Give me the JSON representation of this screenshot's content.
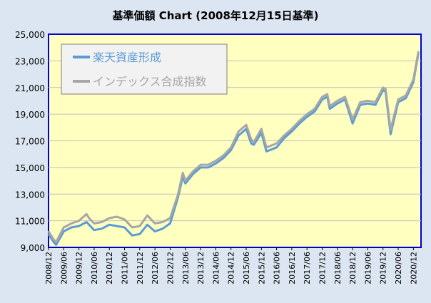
{
  "chart_data": {
    "type": "line",
    "title": "基準価額 Chart (2008年12月15日基準)",
    "xlabel": "",
    "ylabel": "",
    "ylim": [
      9000,
      25000
    ],
    "y_ticks": [
      "9,000",
      "11,000",
      "13,000",
      "15,000",
      "17,000",
      "19,000",
      "21,000",
      "23,000",
      "25,000"
    ],
    "x_ticks": [
      "2008/12",
      "2009/06",
      "2009/12",
      "2010/06",
      "2010/12",
      "2011/06",
      "2011/12",
      "2012/06",
      "2012/12",
      "2013/06",
      "2013/12",
      "2014/06",
      "2014/12",
      "2015/06",
      "2015/12",
      "2016/06",
      "2016/12",
      "2017/06",
      "2017/12",
      "2018/06",
      "2018/12",
      "2019/06",
      "2019/12",
      "2020/06",
      "2020/12"
    ],
    "grid": true,
    "legend_position": "top-left",
    "plot_background": "#ffffc0",
    "series": [
      {
        "name": "楽天資産形成",
        "color": "#5b9bd5",
        "x": [
          "2008/12",
          "2009/02",
          "2009/03",
          "2009/06",
          "2009/09",
          "2009/12",
          "2010/03",
          "2010/04",
          "2010/06",
          "2010/09",
          "2010/12",
          "2011/03",
          "2011/06",
          "2011/09",
          "2011/12",
          "2012/03",
          "2012/06",
          "2012/09",
          "2012/12",
          "2013/03",
          "2013/05",
          "2013/06",
          "2013/09",
          "2013/12",
          "2014/03",
          "2014/06",
          "2014/09",
          "2014/12",
          "2015/03",
          "2015/06",
          "2015/08",
          "2015/09",
          "2015/12",
          "2016/02",
          "2016/06",
          "2016/09",
          "2016/12",
          "2017/03",
          "2017/06",
          "2017/09",
          "2017/12",
          "2018/02",
          "2018/03",
          "2018/06",
          "2018/09",
          "2018/12",
          "2019/03",
          "2019/06",
          "2019/09",
          "2019/12",
          "2020/01",
          "2020/03",
          "2020/04",
          "2020/06",
          "2020/09",
          "2020/12",
          "2021/02"
        ],
        "values": [
          10000,
          9400,
          9200,
          10200,
          10500,
          10600,
          10900,
          10700,
          10300,
          10400,
          10700,
          10600,
          10500,
          9900,
          10000,
          10700,
          10200,
          10400,
          10800,
          12700,
          14300,
          13800,
          14500,
          15000,
          15000,
          15300,
          15700,
          16300,
          17400,
          17900,
          16800,
          16700,
          17600,
          16200,
          16500,
          17200,
          17700,
          18300,
          18800,
          19200,
          20100,
          20300,
          19400,
          19800,
          20100,
          18300,
          19700,
          19800,
          19700,
          20800,
          20700,
          17500,
          18300,
          19900,
          20200,
          21400,
          23600
        ]
      },
      {
        "name": "インデックス合成指数",
        "color": "#a6a6a6",
        "x": [
          "2008/12",
          "2009/02",
          "2009/03",
          "2009/06",
          "2009/09",
          "2009/12",
          "2010/03",
          "2010/04",
          "2010/06",
          "2010/09",
          "2010/12",
          "2011/03",
          "2011/06",
          "2011/09",
          "2011/12",
          "2012/03",
          "2012/06",
          "2012/09",
          "2012/12",
          "2013/03",
          "2013/05",
          "2013/06",
          "2013/09",
          "2013/12",
          "2014/03",
          "2014/06",
          "2014/09",
          "2014/12",
          "2015/03",
          "2015/06",
          "2015/08",
          "2015/09",
          "2015/12",
          "2016/02",
          "2016/06",
          "2016/09",
          "2016/12",
          "2017/03",
          "2017/06",
          "2017/09",
          "2017/12",
          "2018/02",
          "2018/03",
          "2018/06",
          "2018/09",
          "2018/12",
          "2019/03",
          "2019/06",
          "2019/09",
          "2019/12",
          "2020/01",
          "2020/03",
          "2020/04",
          "2020/06",
          "2020/09",
          "2020/12",
          "2021/02"
        ],
        "values": [
          10200,
          9600,
          9400,
          10500,
          10800,
          11000,
          11500,
          11200,
          10800,
          10900,
          11200,
          11300,
          11100,
          10500,
          10600,
          11400,
          10800,
          10900,
          11200,
          12900,
          14600,
          14000,
          14700,
          15200,
          15200,
          15500,
          15900,
          16500,
          17700,
          18200,
          17100,
          16900,
          17900,
          16500,
          16800,
          17400,
          17900,
          18500,
          19000,
          19400,
          20300,
          20500,
          19600,
          20000,
          20300,
          18600,
          19900,
          20000,
          19900,
          21000,
          20900,
          17800,
          18600,
          20100,
          20400,
          21600,
          23700
        ]
      }
    ]
  }
}
